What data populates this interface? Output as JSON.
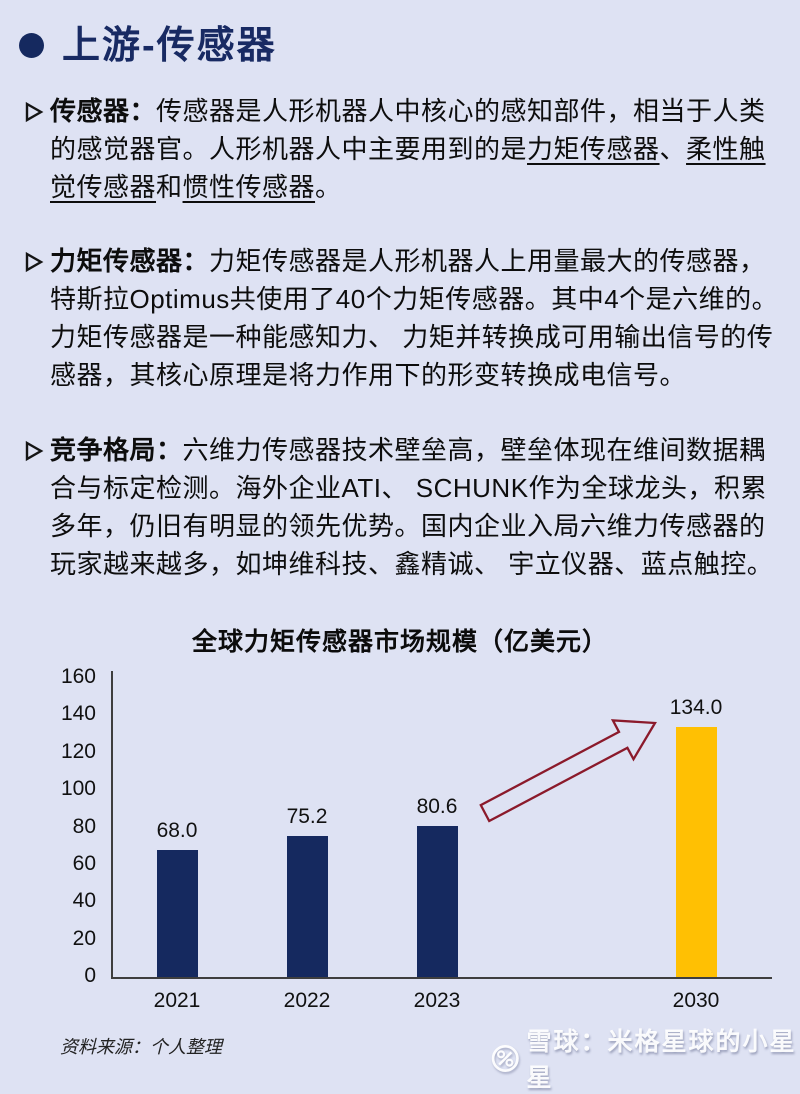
{
  "colors": {
    "background": "#dee2f3",
    "navy_accent": "#182a63",
    "bar_navy": "#15295f",
    "bar_gold": "#ffc003",
    "arrow_red": "#8b1a2b"
  },
  "header": {
    "title": "上游-传感器"
  },
  "paragraphs": [
    {
      "segments": [
        {
          "text": "传感器："
        },
        {
          "text": "传感器是人形机器人中核心的感知部件，相当于人类\n的感觉器官。人形机器人中主要用到的是"
        },
        {
          "text": "力矩传感器"
        },
        {
          "text": "、"
        },
        {
          "text": "柔性触\n觉传感器"
        },
        {
          "text": "和"
        },
        {
          "text": "惯性传感器"
        },
        {
          "text": "。"
        }
      ]
    },
    {
      "segments": [
        {
          "text": "力矩传感器："
        },
        {
          "text": "力矩传感器是人形机器人上用量最大的传感器，\n特斯拉Optimus共使用了40个力矩传感器。其中4个是六维的。\n力矩传感器是一种能感知力、 力矩并转换成可用输出信号的传\n感器，其核心原理是将力作用下的形变转换成电信号。"
        }
      ]
    },
    {
      "segments": [
        {
          "text": "竞争格局："
        },
        {
          "text": "六维力传感器技术壁垒高，壁垒体现在维间数据耦\n合与标定检测。海外企业ATI、 SCHUNK作为全球龙头，积累\n多年，仍旧有明显的领先优势。国内企业入局六维力传感器的\n玩家越来越多，如坤维科技、鑫精诚、 宇立仪器、蓝点触控。"
        }
      ]
    }
  ],
  "chart_data": {
    "type": "bar",
    "title": "全球力矩传感器市场规模（亿美元）",
    "categories": [
      "2021",
      "2022",
      "2023",
      "2030"
    ],
    "values": [
      68.0,
      75.2,
      80.6,
      134.0
    ],
    "value_labels": [
      "68.0",
      "75.2",
      "80.6",
      "134.0"
    ],
    "bar_colors": [
      "#15295f",
      "#15295f",
      "#15295f",
      "#ffc003"
    ],
    "ylim": [
      0,
      160
    ],
    "ytick_step": 20,
    "grid": false,
    "legend": "none",
    "annotation": {
      "type": "growth-arrow",
      "color": "#8b1a2b",
      "from": "2023",
      "to": "2030"
    }
  },
  "footer": {
    "source": "资料来源：个人整理",
    "watermark_text": "雪球：米格星球的小星星"
  }
}
